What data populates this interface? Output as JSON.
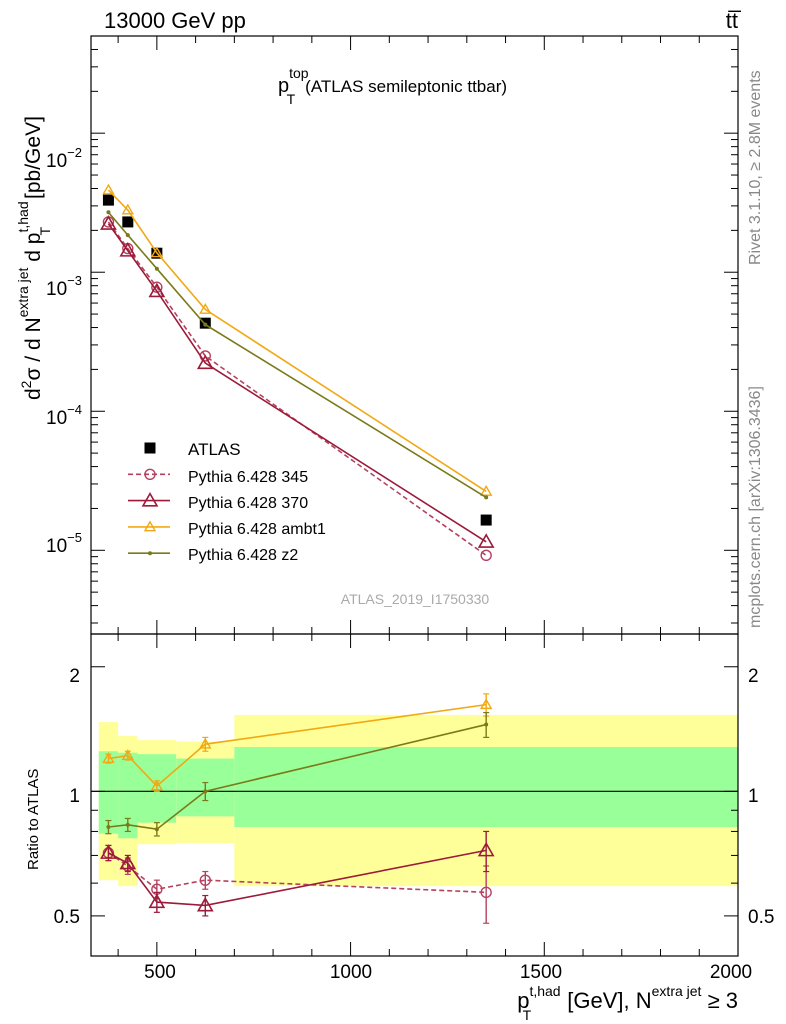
{
  "header": {
    "left": "13000 GeV pp",
    "right": "tt̅"
  },
  "plot_title": {
    "main": "p",
    "sup": "top",
    "sub": "T",
    "desc": "(ATLAS semileptonic ttbar)"
  },
  "side_text": {
    "rivet": "Rivet 3.1.10, ≥ 2.8M events",
    "mcplots": "mcplots.cern.ch [arXiv:1306.3436]"
  },
  "watermark": "ATLAS_2019_I1750330",
  "legend": [
    {
      "label": "ATLAS"
    },
    {
      "label": "Pythia 6.428 345"
    },
    {
      "label": "Pythia 6.428 370"
    },
    {
      "label": "Pythia 6.428 ambt1"
    },
    {
      "label": "Pythia 6.428 z2"
    }
  ],
  "main_ylabel": {
    "p1": "d",
    "p1sup": "2",
    "p2": "σ / d N",
    "p2sup": "extra jet",
    "p3": " d p",
    "p3sup": "t,had",
    "p3sub": "T",
    "p4": " [pb/GeV]"
  },
  "ratio_ylabel": "Ratio to ATLAS",
  "xlabel": {
    "p1": "p",
    "p1sup": "t,had",
    "p1sub": "T",
    "p2": " [GeV], N",
    "p2sup": "extra jet",
    "p3": " ≥ 3"
  },
  "main_ytick_labels": [
    {
      "base": "10",
      "exp": "−5"
    },
    {
      "base": "10",
      "exp": "−4"
    },
    {
      "base": "10",
      "exp": "−3"
    },
    {
      "base": "10",
      "exp": "−2"
    }
  ],
  "x_tick_labels": [
    "500",
    "1000",
    "1500",
    "2000"
  ],
  "ratio_tick_labels": [
    "0.5",
    "1",
    "2"
  ],
  "chart_data": [
    {
      "type": "scatter",
      "panel": "main",
      "x_range": [
        330,
        2000
      ],
      "y_range": [
        2.5e-06,
        0.05
      ],
      "y_scale": "log",
      "x_ticks": [
        500,
        1000,
        1500,
        2000
      ],
      "y_ticks": [
        1e-05,
        0.0001,
        0.001,
        0.01
      ],
      "legend_position": "lower-left",
      "series": [
        {
          "name": "ATLAS",
          "color": "#000000",
          "marker": "filled-square",
          "x": [
            375,
            425,
            500,
            625,
            1350
          ],
          "y": [
            0.0033,
            0.0023,
            0.00137,
            0.00043,
            1.65e-05
          ]
        },
        {
          "name": "Pythia 6.428 345",
          "color": "#b6415f",
          "marker": "open-circle",
          "line": "dashed",
          "x": [
            375,
            425,
            500,
            625,
            1350
          ],
          "y": [
            0.0023,
            0.00148,
            0.00078,
            0.00025,
            9.2e-06
          ]
        },
        {
          "name": "Pythia 6.428 370",
          "color": "#9c1a3a",
          "marker": "open-triangle",
          "line": "solid",
          "x": [
            375,
            425,
            500,
            625,
            1350
          ],
          "y": [
            0.00223,
            0.00143,
            0.00073,
            0.000222,
            1.15e-05
          ]
        },
        {
          "name": "Pythia 6.428 ambt1",
          "color": "#f2a814",
          "marker": "open-triangle-small",
          "line": "solid",
          "x": [
            375,
            425,
            500,
            625,
            1350
          ],
          "y": [
            0.0039,
            0.0028,
            0.00138,
            0.00054,
            2.65e-05
          ]
        },
        {
          "name": "Pythia 6.428 z2",
          "color": "#7a7a1a",
          "marker": "dot",
          "line": "solid",
          "x": [
            375,
            425,
            500,
            625,
            1350
          ],
          "y": [
            0.0027,
            0.00185,
            0.00106,
            0.00042,
            2.4e-05
          ]
        }
      ]
    },
    {
      "type": "line",
      "panel": "ratio",
      "x_range": [
        330,
        2000
      ],
      "y_range": [
        0.4,
        2.4
      ],
      "y_scale": "log",
      "y_ticks": [
        0.5,
        1,
        2
      ],
      "bands": {
        "x_edges": [
          350,
          400,
          450,
          550,
          700,
          2000
        ],
        "yellow_lo": [
          0.61,
          0.59,
          0.745,
          0.75,
          0.59
        ],
        "yellow_hi": [
          1.47,
          1.36,
          1.33,
          1.32,
          1.53
        ],
        "green_lo": [
          0.79,
          0.77,
          0.84,
          0.87,
          0.82
        ],
        "green_hi": [
          1.25,
          1.24,
          1.23,
          1.2,
          1.28
        ]
      },
      "series": [
        {
          "name": "Pythia 6.428 345",
          "x": [
            375,
            425,
            500,
            625,
            1350
          ],
          "y": [
            0.71,
            0.66,
            0.58,
            0.61,
            0.57
          ],
          "err": [
            0.03,
            0.03,
            0.03,
            0.03,
            0.09
          ]
        },
        {
          "name": "Pythia 6.428 370",
          "x": [
            375,
            425,
            500,
            625,
            1350
          ],
          "y": [
            0.71,
            0.67,
            0.54,
            0.53,
            0.72
          ],
          "err": [
            0.03,
            0.03,
            0.03,
            0.03,
            0.08
          ]
        },
        {
          "name": "Pythia 6.428 ambt1",
          "x": [
            375,
            425,
            500,
            625,
            1350
          ],
          "y": [
            1.2,
            1.22,
            1.03,
            1.3,
            1.62
          ],
          "err": [
            0.03,
            0.03,
            0.03,
            0.05,
            0.1
          ]
        },
        {
          "name": "Pythia 6.428 z2",
          "x": [
            375,
            425,
            500,
            625,
            1350
          ],
          "y": [
            0.82,
            0.83,
            0.81,
            1.0,
            1.45
          ],
          "err": [
            0.03,
            0.03,
            0.03,
            0.05,
            0.1
          ]
        }
      ]
    }
  ]
}
